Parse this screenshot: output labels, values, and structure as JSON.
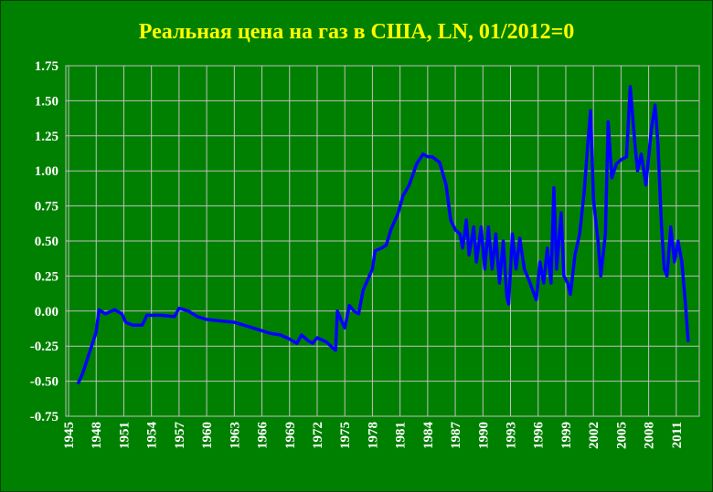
{
  "chart_data": {
    "type": "line",
    "title": "Реальная цена на газ в США, LN, 01/2012=0",
    "x": [
      1946.0,
      1946.5,
      1947.0,
      1947.5,
      1948.0,
      1948.3,
      1949.0,
      1950.0,
      1950.8,
      1951.2,
      1952.0,
      1953.0,
      1953.5,
      1955.0,
      1956.5,
      1957.0,
      1958.0,
      1959.0,
      1960.0,
      1963.0,
      1965.0,
      1967.0,
      1968.0,
      1969.0,
      1969.8,
      1970.3,
      1971.0,
      1971.5,
      1972.0,
      1973.0,
      1974.0,
      1974.2,
      1974.7,
      1975.0,
      1975.5,
      1976.0,
      1976.5,
      1977.0,
      1978.0,
      1978.3,
      1979.0,
      1979.5,
      1980.0,
      1980.8,
      1981.3,
      1982.0,
      1982.8,
      1983.5,
      1984.0,
      1984.5,
      1985.3,
      1986.0,
      1986.5,
      1987.0,
      1987.5,
      1987.8,
      1988.2,
      1988.5,
      1989.0,
      1989.3,
      1989.8,
      1990.2,
      1990.6,
      1991.0,
      1991.4,
      1991.8,
      1992.2,
      1992.6,
      1992.8,
      1993.2,
      1993.6,
      1994.0,
      1994.5,
      1995.0,
      1995.4,
      1995.8,
      1996.2,
      1996.6,
      1997.0,
      1997.4,
      1997.7,
      1998.0,
      1998.5,
      1998.8,
      1999.2,
      1999.5,
      2000.0,
      2000.5,
      2001.0,
      2001.4,
      2001.7,
      2002.0,
      2002.5,
      2002.8,
      2003.3,
      2003.6,
      2004.0,
      2004.5,
      2005.0,
      2005.6,
      2006.0,
      2006.5,
      2006.8,
      2007.2,
      2007.7,
      2008.3,
      2008.7,
      2009.0,
      2009.4,
      2009.7,
      2010.0,
      2010.4,
      2010.8,
      2011.2,
      2011.6,
      2012.0,
      2012.3
    ],
    "series": [
      {
        "name": "LN",
        "color": "#0000ff",
        "values": [
          -0.52,
          -0.45,
          -0.35,
          -0.25,
          -0.15,
          0.01,
          -0.02,
          0.01,
          -0.02,
          -0.08,
          -0.1,
          -0.1,
          -0.03,
          -0.03,
          -0.04,
          0.02,
          0.0,
          -0.04,
          -0.06,
          -0.08,
          -0.12,
          -0.16,
          -0.17,
          -0.2,
          -0.23,
          -0.17,
          -0.21,
          -0.23,
          -0.19,
          -0.22,
          -0.28,
          0.0,
          -0.08,
          -0.12,
          0.04,
          0.0,
          -0.02,
          0.15,
          0.3,
          0.43,
          0.45,
          0.47,
          0.58,
          0.7,
          0.82,
          0.9,
          1.05,
          1.12,
          1.1,
          1.1,
          1.06,
          0.9,
          0.65,
          0.58,
          0.55,
          0.45,
          0.65,
          0.4,
          0.6,
          0.35,
          0.6,
          0.3,
          0.6,
          0.3,
          0.55,
          0.2,
          0.5,
          0.1,
          0.05,
          0.55,
          0.3,
          0.52,
          0.3,
          0.22,
          0.15,
          0.08,
          0.35,
          0.2,
          0.45,
          0.2,
          0.88,
          0.3,
          0.7,
          0.25,
          0.2,
          0.12,
          0.4,
          0.55,
          0.85,
          1.2,
          1.43,
          0.8,
          0.5,
          0.25,
          0.55,
          1.35,
          0.95,
          1.05,
          1.08,
          1.1,
          1.6,
          1.2,
          1.0,
          1.12,
          0.9,
          1.3,
          1.47,
          1.2,
          0.6,
          0.3,
          0.25,
          0.6,
          0.35,
          0.5,
          0.35,
          0.05,
          -0.22
        ]
      }
    ],
    "xlim": [
      1944.7,
      2013.5
    ],
    "xticks": [
      1945,
      1948,
      1951,
      1954,
      1957,
      1960,
      1963,
      1966,
      1969,
      1972,
      1975,
      1978,
      1981,
      1984,
      1987,
      1990,
      1993,
      1996,
      1999,
      2002,
      2005,
      2008,
      2011
    ],
    "ylim": [
      -0.75,
      1.75
    ],
    "yticks": [
      -0.75,
      {
        "value": -0.5,
        "label": "-0.50"
      },
      -0.25,
      {
        "value": 0,
        "label": "0.00"
      },
      0.25,
      {
        "value": 0.5,
        "label": "0.50"
      },
      0.75,
      {
        "value": 1,
        "label": "1.00"
      },
      1.25,
      {
        "value": 1.5,
        "label": "1.50"
      },
      1.75
    ],
    "grid": true
  }
}
